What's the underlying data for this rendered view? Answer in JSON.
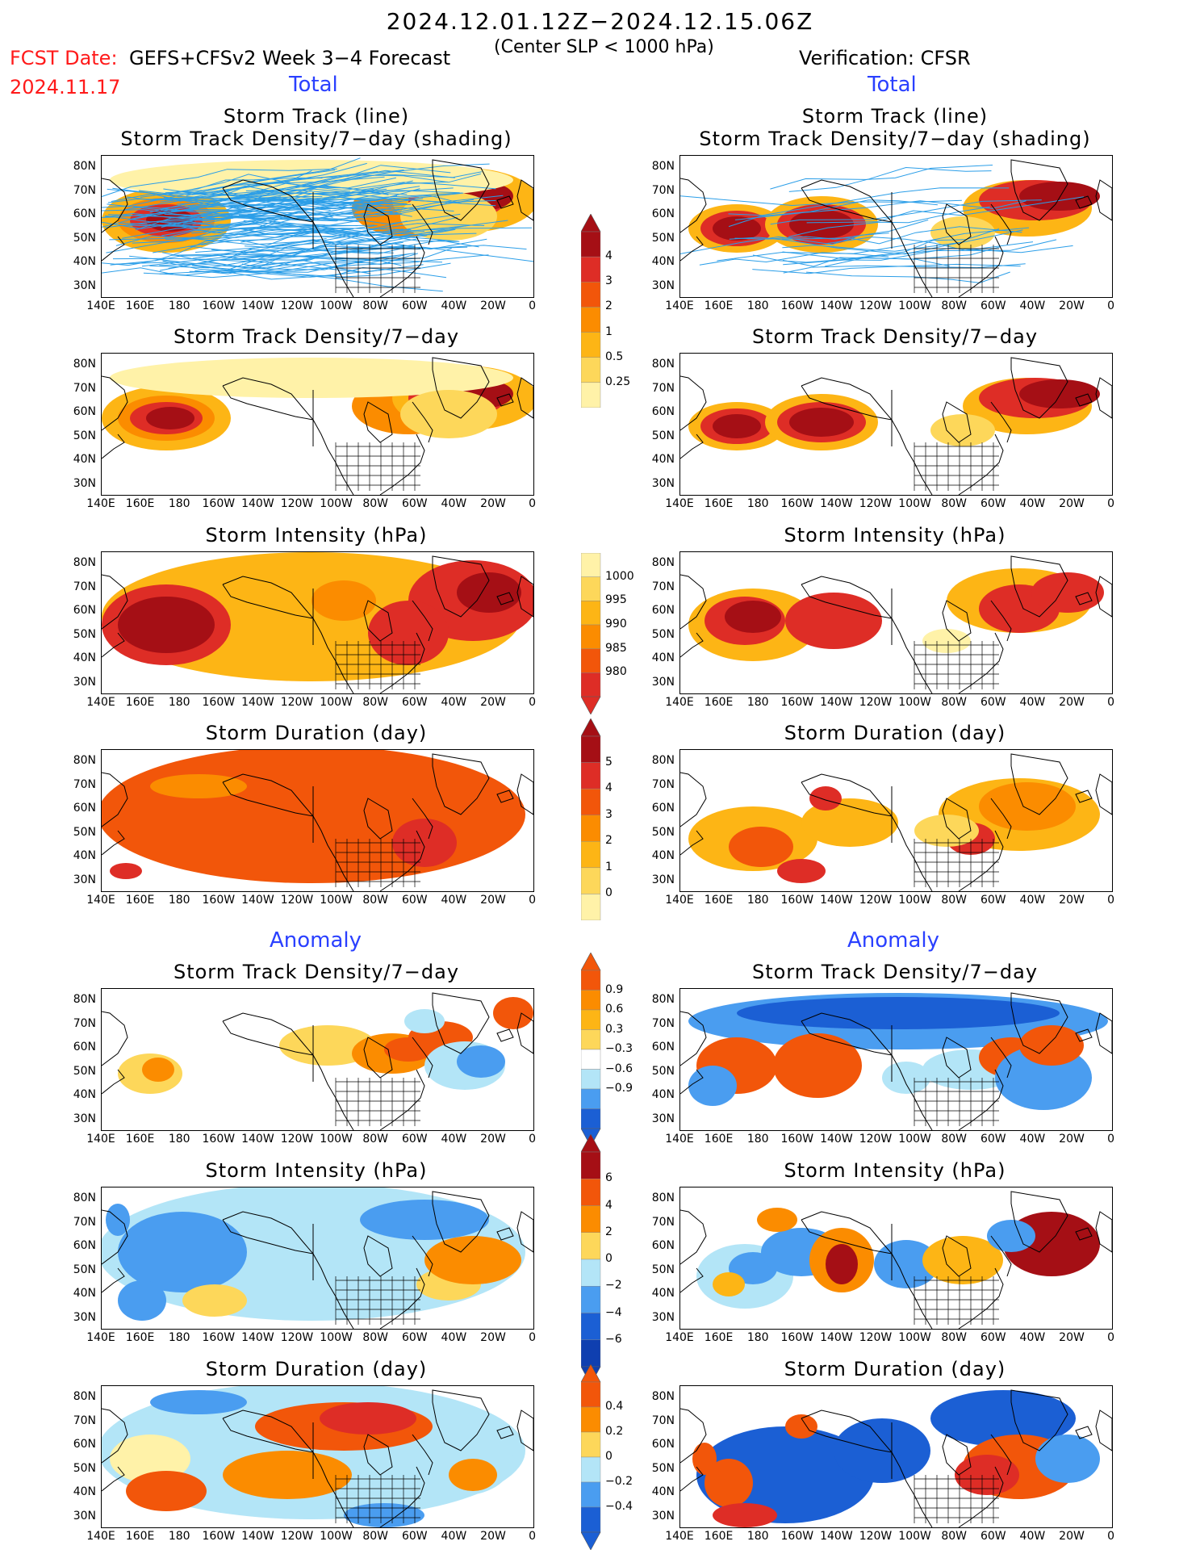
{
  "header": {
    "date_range": "2024.12.01.12Z−2024.12.15.06Z",
    "fcst_label": "FCST Date:",
    "fcst_title": "GEFS+CFSv2 Week 3−4 Forecast",
    "fcst_date": "2024.11.17",
    "center_slp": "(Center SLP < 1000 hPa)",
    "verification": "Verification: CFSR"
  },
  "sections": {
    "total_left": "Total",
    "total_right": "Total",
    "anomaly_left": "Anomaly",
    "anomaly_right": "Anomaly"
  },
  "titles": {
    "track_line": "Storm Track (line)",
    "track_shading": "Storm Track Density/7−day (shading)",
    "density": "Storm Track Density/7−day",
    "intensity": "Storm Intensity (hPa)",
    "duration": "Storm Duration (day)"
  },
  "axes": {
    "lat_labels": [
      "80N",
      "70N",
      "60N",
      "50N",
      "40N",
      "30N"
    ],
    "lon_labels": [
      "140E",
      "160E",
      "180",
      "160W",
      "140W",
      "120W",
      "100W",
      "80W",
      "60W",
      "40W",
      "20W",
      "0"
    ]
  },
  "colorbars": {
    "density": [
      "4",
      "3",
      "2",
      "1",
      "0.5",
      "0.25"
    ],
    "intensity": [
      "1000",
      "995",
      "990",
      "985",
      "980"
    ],
    "duration": [
      "5",
      "4",
      "3",
      "2",
      "1",
      "0"
    ],
    "density_anom": [
      "0.9",
      "0.6",
      "0.3",
      "−0.3",
      "−0.6",
      "−0.9"
    ],
    "intensity_anom": [
      "6",
      "4",
      "2",
      "0",
      "−2",
      "−4",
      "−6"
    ],
    "duration_anom": [
      "0.4",
      "0.2",
      "0",
      "−0.2",
      "−0.4"
    ]
  },
  "colors": {
    "dark_red": "#a50f15",
    "red": "#de2d26",
    "red_orange": "#f2560a",
    "orange": "#fb8c00",
    "light_orange": "#fdb515",
    "yellow": "#fdd75a",
    "pale_yellow": "#fff2a8",
    "light_blue": "#b3e5f7",
    "blue": "#4a9df0",
    "dark_blue": "#1b5fd4",
    "track_line": "#2b9ee8",
    "section_blue": "#2a40ff",
    "fcst_red": "#ff1a1a"
  }
}
